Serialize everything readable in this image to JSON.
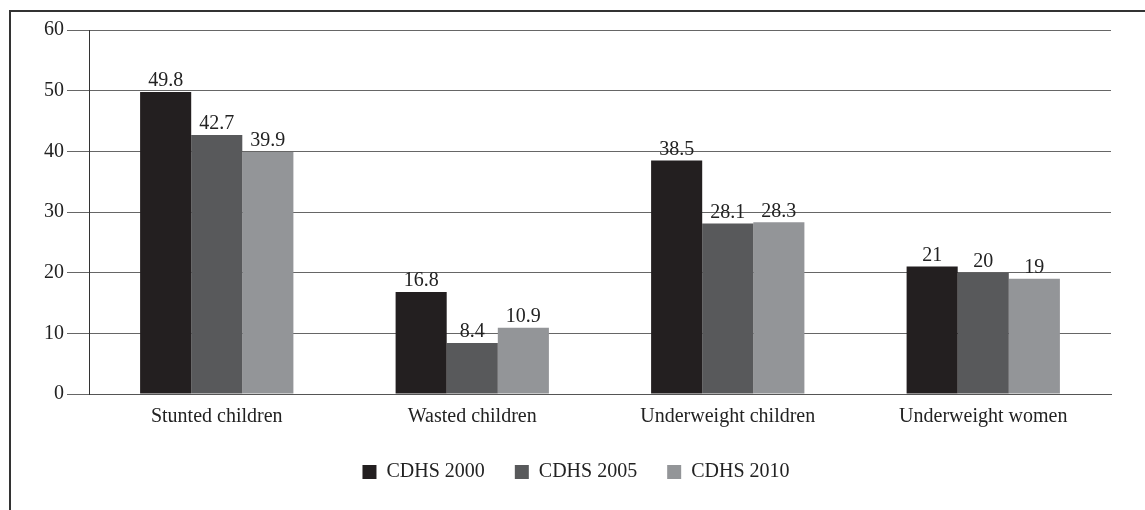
{
  "chart_data": {
    "type": "bar",
    "categories": [
      "Stunted children",
      "Wasted children",
      "Underweight children",
      "Underweight women"
    ],
    "series": [
      {
        "name": "CDHS 2000",
        "color": "#231f20",
        "values": [
          49.8,
          16.8,
          38.5,
          21
        ]
      },
      {
        "name": "CDHS 2005",
        "color": "#58595b",
        "values": [
          42.7,
          8.4,
          28.1,
          20
        ]
      },
      {
        "name": "CDHS 2010",
        "color": "#939598",
        "values": [
          39.9,
          10.9,
          28.3,
          19
        ]
      }
    ],
    "ylim": [
      0,
      60
    ],
    "yticks": [
      0,
      10,
      20,
      30,
      40,
      50,
      60
    ],
    "grid": "y",
    "legend": "bottom",
    "data_labels": true
  }
}
